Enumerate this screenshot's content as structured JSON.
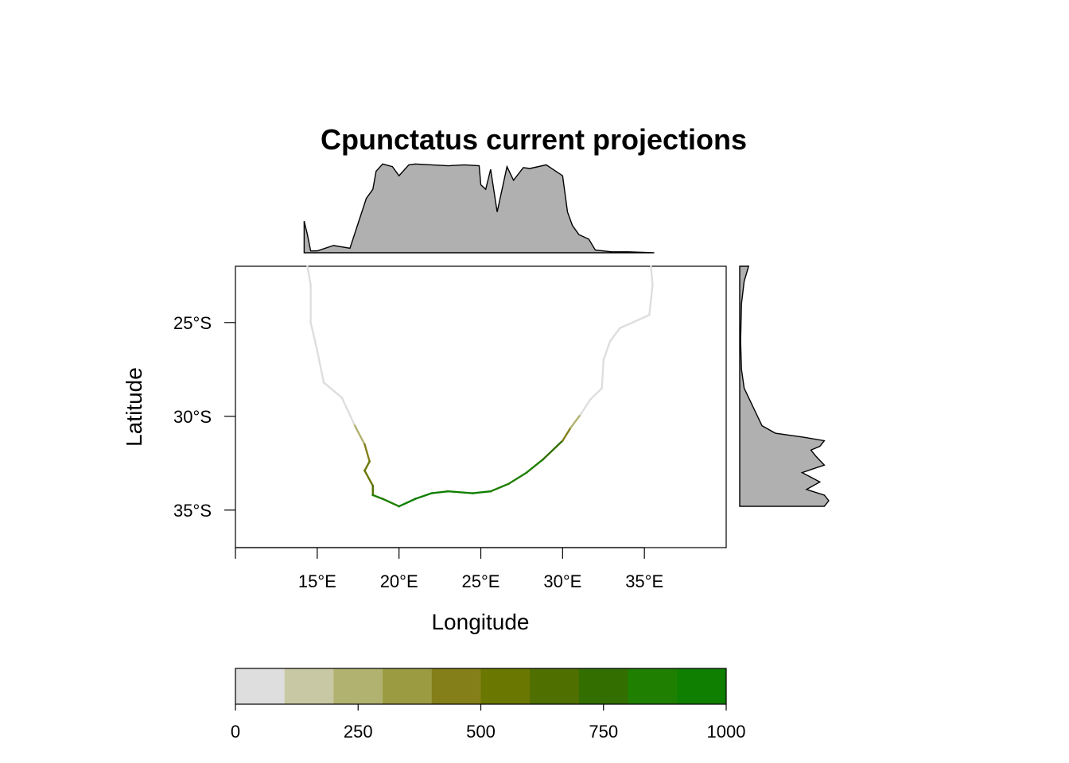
{
  "chart_data": {
    "type": "heatmap",
    "title": "Cpunctatus current projections",
    "xlabel": "Longitude",
    "ylabel": "Latitude",
    "x_ticks": [
      "15°E",
      "20°E",
      "25°E",
      "30°E",
      "35°E"
    ],
    "y_ticks": [
      "25°S",
      "30°S",
      "35°S"
    ],
    "x_tick_values": [
      15,
      20,
      25,
      30,
      35
    ],
    "y_tick_values": [
      -25,
      -30,
      -35
    ],
    "xlim": [
      10,
      40
    ],
    "ylim": [
      -37,
      -22
    ],
    "colorbar": {
      "range": [
        0,
        1000
      ],
      "ticks": [
        0,
        250,
        500,
        750,
        1000
      ],
      "colors": [
        "#dedede",
        "#c8c8a4",
        "#b1b270",
        "#9b9c42",
        "#857f19",
        "#6a7700",
        "#4f6f00",
        "#336f00",
        "#1f7f00",
        "#0e7f00"
      ]
    },
    "coastline_suitability": [
      {
        "lon": 14.4,
        "lat": -22.0,
        "value": 120
      },
      {
        "lon": 14.6,
        "lat": -23.0,
        "value": 40
      },
      {
        "lon": 14.6,
        "lat": -25.0,
        "value": 10
      },
      {
        "lon": 15.0,
        "lat": -26.5,
        "value": 10
      },
      {
        "lon": 15.4,
        "lat": -28.2,
        "value": 10
      },
      {
        "lon": 16.5,
        "lat": -29.0,
        "value": 20
      },
      {
        "lon": 17.3,
        "lat": -30.5,
        "value": 80
      },
      {
        "lon": 17.9,
        "lat": -31.5,
        "value": 350
      },
      {
        "lon": 18.2,
        "lat": -32.4,
        "value": 500
      },
      {
        "lon": 17.9,
        "lat": -32.9,
        "value": 550
      },
      {
        "lon": 18.4,
        "lat": -33.7,
        "value": 620
      },
      {
        "lon": 18.4,
        "lat": -34.2,
        "value": 750
      },
      {
        "lon": 19.0,
        "lat": -34.4,
        "value": 850
      },
      {
        "lon": 20.0,
        "lat": -34.8,
        "value": 900
      },
      {
        "lon": 21.0,
        "lat": -34.4,
        "value": 920
      },
      {
        "lon": 22.0,
        "lat": -34.1,
        "value": 900
      },
      {
        "lon": 23.0,
        "lat": -34.0,
        "value": 900
      },
      {
        "lon": 24.5,
        "lat": -34.1,
        "value": 920
      },
      {
        "lon": 25.6,
        "lat": -34.0,
        "value": 900
      },
      {
        "lon": 26.7,
        "lat": -33.6,
        "value": 880
      },
      {
        "lon": 27.8,
        "lat": -33.0,
        "value": 850
      },
      {
        "lon": 28.8,
        "lat": -32.3,
        "value": 800
      },
      {
        "lon": 30.0,
        "lat": -31.3,
        "value": 650
      },
      {
        "lon": 30.5,
        "lat": -30.6,
        "value": 300
      },
      {
        "lon": 31.1,
        "lat": -29.9,
        "value": 120
      },
      {
        "lon": 31.7,
        "lat": -29.1,
        "value": 30
      },
      {
        "lon": 32.4,
        "lat": -28.5,
        "value": 10
      },
      {
        "lon": 32.5,
        "lat": -27.0,
        "value": 0
      },
      {
        "lon": 32.9,
        "lat": -26.0,
        "value": 0
      },
      {
        "lon": 33.5,
        "lat": -25.3,
        "value": 0
      },
      {
        "lon": 35.3,
        "lat": -24.6,
        "value": 0
      },
      {
        "lon": 35.5,
        "lat": -23.0,
        "value": 0
      },
      {
        "lon": 35.4,
        "lat": -22.0,
        "value": 0
      }
    ],
    "marginal_longitude_density": {
      "x": [
        14.2,
        14.4,
        14.6,
        15.0,
        16.0,
        17.0,
        18.0,
        18.4,
        18.6,
        19.0,
        19.6,
        20.0,
        20.6,
        21.0,
        22.0,
        23.0,
        24.0,
        24.9,
        25.0,
        25.3,
        25.6,
        26.0,
        26.6,
        27.0,
        27.6,
        28.0,
        29.0,
        30.0,
        30.3,
        30.6,
        31.0,
        31.6,
        32.0,
        33.0,
        34.0,
        35.6
      ],
      "y": [
        0.35,
        0.2,
        0.02,
        0.02,
        0.08,
        0.05,
        0.6,
        0.7,
        0.9,
        0.98,
        0.95,
        0.85,
        0.97,
        0.98,
        0.97,
        0.96,
        0.97,
        0.96,
        0.75,
        0.7,
        0.92,
        0.45,
        0.95,
        0.8,
        0.94,
        0.93,
        0.97,
        0.85,
        0.45,
        0.3,
        0.2,
        0.15,
        0.03,
        0.01,
        0.01,
        0.0
      ]
    },
    "marginal_latitude_density": {
      "lat": [
        -22.0,
        -22.8,
        -24.0,
        -26.0,
        -27.5,
        -28.5,
        -29.5,
        -30.5,
        -30.9,
        -31.1,
        -31.3,
        -31.6,
        -31.8,
        -32.1,
        -32.6,
        -33.0,
        -33.5,
        -33.9,
        -34.2,
        -34.5,
        -34.8
      ],
      "density": [
        0.1,
        0.05,
        0.02,
        0.01,
        0.02,
        0.05,
        0.15,
        0.25,
        0.4,
        0.7,
        0.95,
        0.9,
        0.8,
        0.85,
        0.95,
        0.7,
        0.9,
        0.75,
        0.95,
        1.0,
        0.95
      ]
    }
  }
}
